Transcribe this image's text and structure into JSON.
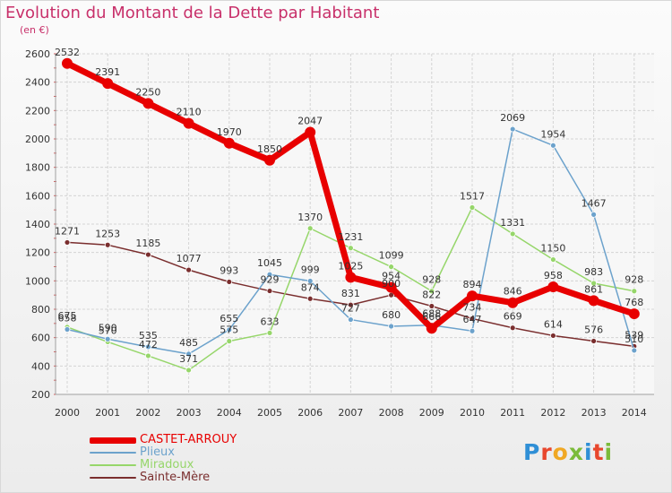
{
  "header": {
    "title": "Evolution du Montant de la Dette par Habitant",
    "unit": "(en €)"
  },
  "logo": {
    "text": "Proxiti"
  },
  "chart_data": {
    "type": "line",
    "title": "Evolution du Montant de la Dette par Habitant",
    "ylabel": "(en €)",
    "xlabel": "",
    "ylim": [
      200,
      2600
    ],
    "yticks": [
      200,
      400,
      600,
      800,
      1000,
      1200,
      1400,
      1600,
      1800,
      2000,
      2200,
      2400,
      2600
    ],
    "grid": true,
    "legend_position": "bottom-left",
    "x": [
      "2000",
      "2001",
      "2002",
      "2003",
      "2004",
      "2005",
      "2006",
      "2007",
      "2008",
      "2009",
      "2010",
      "2011",
      "2012",
      "2013",
      "2014"
    ],
    "series": [
      {
        "name": "CASTET-ARROUY",
        "color": "#e80000",
        "values": [
          2532,
          2391,
          2250,
          2110,
          1970,
          1850,
          2047,
          1025,
          954,
          666,
          894,
          846,
          958,
          861,
          768
        ]
      },
      {
        "name": "Plieux",
        "color": "#6ca2cc",
        "values": [
          658,
          590,
          535,
          485,
          655,
          1045,
          999,
          727,
          680,
          688,
          647,
          2069,
          1954,
          1467,
          510
        ]
      },
      {
        "name": "Miradoux",
        "color": "#96d66a",
        "values": [
          675,
          570,
          472,
          371,
          575,
          633,
          1370,
          1231,
          1099,
          928,
          1517,
          1331,
          1150,
          983,
          928
        ]
      },
      {
        "name": "Sainte-Mère",
        "color": "#7a2e2e",
        "values": [
          1271,
          1253,
          1185,
          1077,
          993,
          929,
          874,
          831,
          900,
          822,
          734,
          669,
          614,
          576,
          539
        ]
      }
    ]
  }
}
